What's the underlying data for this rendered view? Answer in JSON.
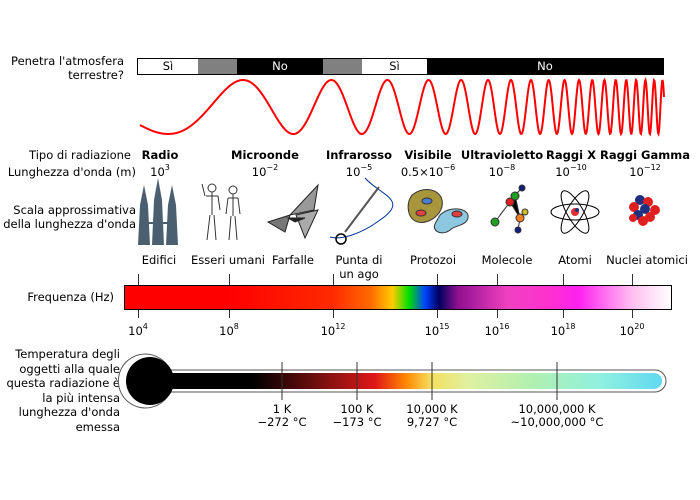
{
  "atmosphere": {
    "label_line1": "Penetra l'atmosfera",
    "label_line2": "terrestre?",
    "segments": [
      {
        "text": "Sì",
        "color": "#ffffff"
      },
      {
        "text": "",
        "color": "#808080"
      },
      {
        "text": "No",
        "color": "#000000"
      },
      {
        "text": "",
        "color": "#808080"
      },
      {
        "text": "Sì",
        "color": "#ffffff"
      },
      {
        "text": "No",
        "color": "#000000"
      }
    ]
  },
  "wave_color": "#ff0000",
  "row_labels": {
    "type": "Tipo di radiazione",
    "wavelength": "Lunghezza d'onda (m)",
    "scale_line1": "Scala approssimativa",
    "scale_line2": "della lunghezza d'onda",
    "frequency": "Frequenza (Hz)",
    "temp_lines": [
      "Temperatura degli",
      "oggetti alla quale",
      "questa radiazione è",
      "la più intensa",
      "lunghezza d'onda",
      "emessa"
    ]
  },
  "radiation_types": [
    {
      "name": "Radio",
      "wl_base": "10",
      "wl_exp": "3"
    },
    {
      "name": "Microonde",
      "wl_base": "10",
      "wl_exp": "−2"
    },
    {
      "name": "Infrarosso",
      "wl_base": "10",
      "wl_exp": "−5"
    },
    {
      "name": "Visibile",
      "wl_base": "0.5×10",
      "wl_exp": "−6"
    },
    {
      "name": "Ultravioletto",
      "wl_base": "10",
      "wl_exp": "−8"
    },
    {
      "name": "Raggi X",
      "wl_base": "10",
      "wl_exp": "−10"
    },
    {
      "name": "Raggi Gamma",
      "wl_base": "10",
      "wl_exp": "−12"
    }
  ],
  "scale_objects": [
    {
      "label": "Edifici",
      "icon": "buildings-icon"
    },
    {
      "label": "Esseri umani",
      "icon": "humans-icon"
    },
    {
      "label": "Farfalle",
      "icon": "butterfly-icon"
    },
    {
      "label_line1": "Punta di",
      "label_line2": "un ago",
      "icon": "needle-icon"
    },
    {
      "label": "Protozoi",
      "icon": "protozoa-icon"
    },
    {
      "label": "Molecole",
      "icon": "molecule-icon"
    },
    {
      "label": "Atomi",
      "icon": "atom-icon"
    },
    {
      "label": "Nuclei atomici",
      "icon": "nucleus-icon"
    }
  ],
  "frequency_ticks": [
    {
      "base": "10",
      "exp": "4"
    },
    {
      "base": "10",
      "exp": "8"
    },
    {
      "base": "10",
      "exp": "12"
    },
    {
      "base": "10",
      "exp": "15"
    },
    {
      "base": "10",
      "exp": "16"
    },
    {
      "base": "10",
      "exp": "18"
    },
    {
      "base": "10",
      "exp": "20"
    }
  ],
  "temperature_ticks": [
    {
      "kelvin": "1 K",
      "celsius": "−272 °C"
    },
    {
      "kelvin": "100 K",
      "celsius": "−173 °C"
    },
    {
      "kelvin": "10,000 K",
      "celsius": "9,727 °C"
    },
    {
      "kelvin": "10,000,000 K",
      "celsius": "~10,000,000 °C"
    }
  ]
}
